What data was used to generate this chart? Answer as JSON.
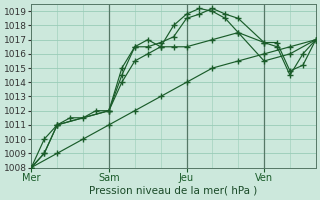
{
  "xlabel": "Pression niveau de la mer( hPa )",
  "background_color": "#cce8dc",
  "grid_color": "#99ccb8",
  "line_color": "#1a5c2a",
  "ylim": [
    1008,
    1019.5
  ],
  "yticks": [
    1008,
    1009,
    1010,
    1011,
    1012,
    1013,
    1014,
    1015,
    1016,
    1017,
    1018,
    1019
  ],
  "day_labels": [
    "Mer",
    "Sam",
    "Jeu",
    "Ven"
  ],
  "day_positions": [
    0,
    24,
    48,
    72
  ],
  "xlim": [
    0,
    88
  ],
  "vline_positions": [
    24,
    48,
    72
  ],
  "vline_color": "#557766",
  "series": [
    {
      "x": [
        0,
        4,
        8,
        24,
        28,
        32,
        36,
        40,
        44,
        48,
        52,
        56,
        60,
        64,
        72,
        76,
        80,
        84,
        88
      ],
      "y": [
        1008,
        1009,
        1011,
        1012,
        1014.5,
        1016.5,
        1016.5,
        1016.8,
        1017.2,
        1018.5,
        1018.8,
        1019.2,
        1018.8,
        1018.5,
        1016.8,
        1016.5,
        1014.5,
        1016,
        1017
      ]
    },
    {
      "x": [
        0,
        4,
        8,
        24,
        28,
        32,
        36,
        40,
        44,
        48,
        52,
        56,
        60,
        64,
        72,
        76,
        80,
        84,
        88
      ],
      "y": [
        1008,
        1009,
        1011,
        1012,
        1015,
        1016.5,
        1017,
        1016.5,
        1018,
        1018.8,
        1019.2,
        1019.0,
        1018.5,
        1017.5,
        1016.8,
        1016.8,
        1014.8,
        1015.2,
        1017
      ]
    },
    {
      "x": [
        0,
        4,
        8,
        12,
        16,
        20,
        24,
        28,
        32,
        36,
        40,
        44,
        48,
        56,
        64,
        72,
        80,
        88
      ],
      "y": [
        1008,
        1010,
        1011,
        1011.5,
        1011.5,
        1012,
        1012,
        1014,
        1015.5,
        1016,
        1016.5,
        1016.5,
        1016.5,
        1017,
        1017.5,
        1015.5,
        1016,
        1017
      ]
    },
    {
      "x": [
        0,
        8,
        16,
        24,
        32,
        40,
        48,
        56,
        64,
        72,
        80,
        88
      ],
      "y": [
        1008,
        1009,
        1010,
        1011,
        1012,
        1013,
        1014,
        1015,
        1015.5,
        1016,
        1016.5,
        1017
      ]
    }
  ]
}
